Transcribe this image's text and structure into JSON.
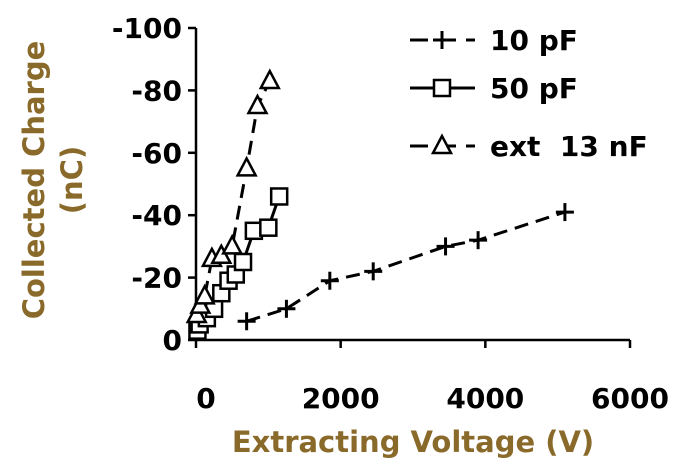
{
  "chart_data": {
    "type": "scatter",
    "title": "",
    "xlabel": "Extracting Voltage (V)",
    "ylabel_line1": "Collected Charge",
    "ylabel_line2": "(nC)",
    "xlim": [
      0,
      6000
    ],
    "ylim": [
      0,
      -100
    ],
    "x_ticks": [
      0,
      2000,
      4000,
      6000
    ],
    "x_tick_labels": [
      "0",
      "2000",
      "4000",
      "6000"
    ],
    "y_ticks": [
      0,
      -20,
      -40,
      -60,
      -80,
      -100
    ],
    "y_tick_labels": [
      "0",
      "-20",
      "-40",
      "-60",
      "-80",
      "-100"
    ],
    "grid": false,
    "legend_position": "top-right",
    "series": [
      {
        "name": "10 pF",
        "marker": "plus",
        "line": "dash",
        "color": "#000000",
        "x": [
          700,
          1250,
          1850,
          2450,
          3450,
          3900,
          5100
        ],
        "y": [
          -6,
          -10,
          -19,
          -22,
          -30,
          -32,
          -41
        ]
      },
      {
        "name": "50 pF",
        "marker": "square",
        "line": "solid",
        "color": "#000000",
        "x": [
          20,
          50,
          150,
          250,
          350,
          450,
          550,
          650,
          800,
          1000,
          1150
        ],
        "y": [
          -3,
          -5,
          -7,
          -10,
          -15,
          -19,
          -21,
          -25,
          -35,
          -36,
          -46
        ]
      },
      {
        "name": "ext  13 nF",
        "marker": "triangle",
        "line": "dash",
        "color": "#000000",
        "x": [
          10,
          60,
          120,
          220,
          350,
          500,
          700,
          850,
          1020
        ],
        "y": [
          -8,
          -11,
          -14,
          -26,
          -27,
          -30,
          -55,
          -75,
          -83
        ]
      }
    ]
  }
}
